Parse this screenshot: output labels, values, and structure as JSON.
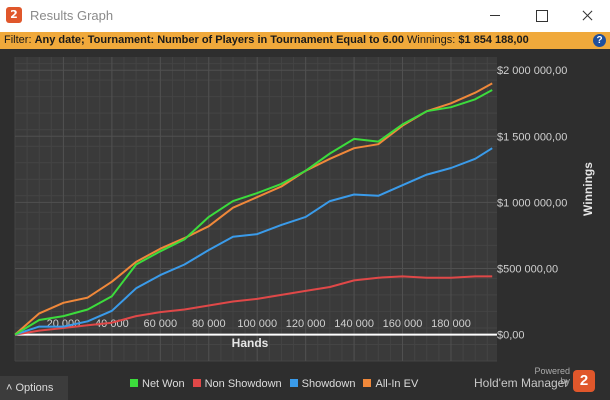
{
  "window": {
    "title": "Results Graph",
    "icon_label": "2"
  },
  "filter": {
    "label": "Filter:",
    "value": "Any date; Tournament: Number of Players in Tournament Equal to 6.00",
    "winnings_label": "Winnings:",
    "winnings_value": "$1 854 188,00",
    "help_symbol": "?"
  },
  "options": {
    "label": "Options",
    "caret": "˄"
  },
  "brand": {
    "powered": "Powered by",
    "name": "Hold'em Manager",
    "logo": "2"
  },
  "colors": {
    "net_won": "#3cdc3c",
    "non_showdown": "#e04848",
    "showdown": "#3a9bea",
    "all_in_ev": "#f0883a",
    "filter_bar": "#f0a93b"
  },
  "chart_data": {
    "type": "line",
    "xlabel": "Hands",
    "ylabel": "Winnings",
    "xlim": [
      0,
      199000
    ],
    "ylim": [
      -200000,
      2100000
    ],
    "x_ticks": [
      20000,
      40000,
      60000,
      80000,
      100000,
      120000,
      140000,
      160000,
      180000
    ],
    "x_tick_labels": [
      "20 000",
      "40 000",
      "60 000",
      "80 000",
      "100 000",
      "120 000",
      "140 000",
      "160 000",
      "180 000"
    ],
    "y_ticks": [
      0,
      500000,
      1000000,
      1500000,
      2000000
    ],
    "y_tick_labels": [
      "$0,00",
      "$500 000,00",
      "$1 000 000,00",
      "$1 500 000,00",
      "$2 000 000,00"
    ],
    "grid": true,
    "legend_position": "bottom",
    "x": [
      0,
      10000,
      20000,
      30000,
      40000,
      50000,
      60000,
      70000,
      80000,
      90000,
      100000,
      110000,
      120000,
      130000,
      140000,
      150000,
      160000,
      170000,
      180000,
      190000,
      197000
    ],
    "series": [
      {
        "name": "Net Won",
        "values": [
          0,
          110000,
          140000,
          190000,
          290000,
          530000,
          630000,
          720000,
          890000,
          1010000,
          1070000,
          1140000,
          1240000,
          1370000,
          1480000,
          1460000,
          1590000,
          1690000,
          1720000,
          1780000,
          1850000
        ]
      },
      {
        "name": "Non Showdown",
        "values": [
          0,
          30000,
          50000,
          70000,
          90000,
          140000,
          170000,
          190000,
          220000,
          250000,
          270000,
          300000,
          330000,
          360000,
          410000,
          430000,
          440000,
          430000,
          430000,
          440000,
          440000
        ]
      },
      {
        "name": "Showdown",
        "values": [
          0,
          60000,
          60000,
          100000,
          180000,
          350000,
          450000,
          530000,
          640000,
          740000,
          760000,
          830000,
          890000,
          1010000,
          1060000,
          1050000,
          1130000,
          1210000,
          1260000,
          1330000,
          1410000
        ]
      },
      {
        "name": "All-In EV",
        "values": [
          0,
          160000,
          240000,
          280000,
          400000,
          550000,
          650000,
          730000,
          820000,
          960000,
          1040000,
          1120000,
          1240000,
          1330000,
          1410000,
          1440000,
          1580000,
          1690000,
          1750000,
          1830000,
          1900000
        ]
      }
    ]
  }
}
